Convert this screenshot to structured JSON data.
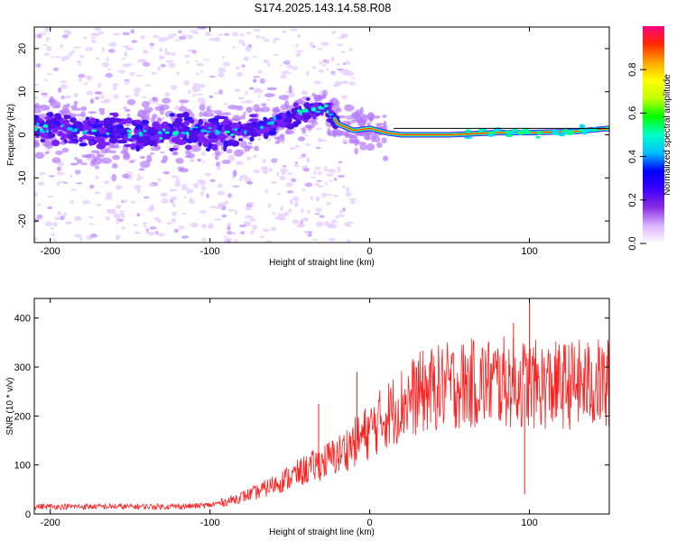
{
  "title": "S174.2025.143.14.58.R08",
  "chart_data": [
    {
      "type": "heatmap",
      "xlabel": "Height of straight line (km)",
      "ylabel": "Frequency (Hz)",
      "xlim": [
        -210,
        150
      ],
      "ylim": [
        -25,
        25
      ],
      "xticks": [
        -200,
        -100,
        0,
        100
      ],
      "yticks": [
        -20,
        -10,
        0,
        10,
        20
      ],
      "colorbar": {
        "label": "Normalized spectral amplitude",
        "range": [
          0,
          1
        ],
        "ticks": [
          "0.0",
          "0.2",
          "0.4",
          "0.6",
          "0.8"
        ],
        "colormap": [
          "#ffffff",
          "#d9b3ff",
          "#8a2be2",
          "#3b00ff",
          "#0000ff",
          "#00bfff",
          "#00ffc8",
          "#00ff00",
          "#bfff00",
          "#ffff00",
          "#ffa500",
          "#ff2a00",
          "#ff0080"
        ]
      },
      "ridge": [
        {
          "x": -205,
          "f": 1.5
        },
        {
          "x": -150,
          "f": 0.5
        },
        {
          "x": -100,
          "f": 0.5
        },
        {
          "x": -75,
          "f": 1.5
        },
        {
          "x": -60,
          "f": 2.5
        },
        {
          "x": -45,
          "f": 4.5
        },
        {
          "x": -30,
          "f": 6.5
        },
        {
          "x": -25,
          "f": 5.5
        },
        {
          "x": -20,
          "f": 2.5
        },
        {
          "x": -10,
          "f": 1.0
        },
        {
          "x": 0,
          "f": 1.5
        },
        {
          "x": 10,
          "f": 0.5
        },
        {
          "x": 20,
          "f": 0.0
        },
        {
          "x": 50,
          "f": 0.0
        },
        {
          "x": 80,
          "f": 0.5
        },
        {
          "x": 100,
          "f": 0.5
        },
        {
          "x": 130,
          "f": 0.8
        },
        {
          "x": 150,
          "f": 1.5
        }
      ]
    },
    {
      "type": "line",
      "xlabel": "Height of straight line (km)",
      "ylabel": "SNR (10 * v/v)",
      "xlim": [
        -210,
        150
      ],
      "ylim": [
        0,
        440
      ],
      "xticks": [
        -200,
        -100,
        0,
        100
      ],
      "yticks": [
        0,
        100,
        200,
        300,
        400
      ],
      "color": "#ff2020",
      "series": [
        {
          "x": [
            -210,
            -190,
            -170,
            -150,
            -130,
            -110,
            -100,
            -90,
            -80,
            -70,
            -60,
            -50,
            -40,
            -30,
            -20,
            -10,
            0,
            10,
            20,
            30,
            40,
            50,
            60,
            70,
            80,
            90,
            100,
            110,
            120,
            130,
            140,
            150
          ],
          "values": [
            15,
            15,
            15,
            15,
            15,
            16,
            18,
            25,
            35,
            45,
            60,
            75,
            90,
            105,
            120,
            145,
            170,
            200,
            225,
            245,
            255,
            262,
            265,
            268,
            270,
            268,
            265,
            262,
            262,
            265,
            265,
            268
          ]
        }
      ],
      "spikes": [
        {
          "x": -32,
          "y": 225
        },
        {
          "x": -8,
          "y": 290
        },
        {
          "x": 33,
          "y": 300
        },
        {
          "x": 90,
          "y": 390
        },
        {
          "x": 97,
          "y": 40
        },
        {
          "x": 100,
          "y": 440
        },
        {
          "x": 148,
          "y": 180
        }
      ]
    }
  ]
}
